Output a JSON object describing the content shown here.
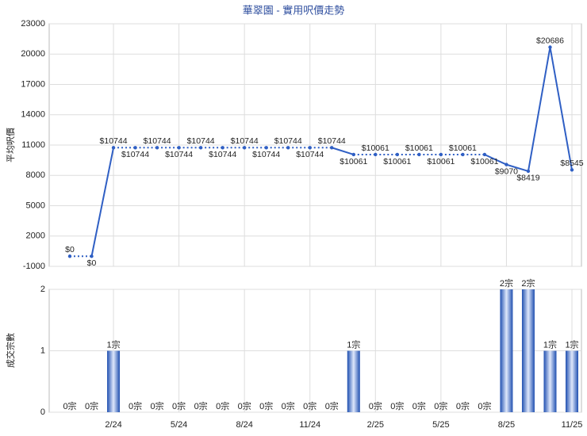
{
  "chart_data": [
    {
      "type": "line",
      "title": "華翠園 - 實用呎價走勢",
      "y_label": "平均呎價",
      "categories": [
        null,
        null,
        "2/24",
        null,
        null,
        "5/24",
        null,
        null,
        "8/24",
        null,
        null,
        "11/24",
        null,
        null,
        "2/25",
        null,
        null,
        "5/25",
        null,
        null,
        "8/25",
        null,
        null,
        "11/25"
      ],
      "series": [
        {
          "name": "平均呎價",
          "color": "#2f5fc4",
          "values": [
            0,
            0,
            10744,
            10744,
            10744,
            10744,
            10744,
            10744,
            10744,
            10744,
            10744,
            10744,
            10744,
            10061,
            10061,
            10061,
            10061,
            10061,
            10061,
            10061,
            9070,
            8419,
            20686,
            8545
          ],
          "value_labels": [
            "$0",
            "$0",
            "$10744",
            "$10744",
            "$10744",
            "$10744",
            "$10744",
            "$10744",
            "$10744",
            "$10744",
            "$10744",
            "$10744",
            "$10744",
            "$10061",
            "$10061",
            "$10061",
            "$10061",
            "$10061",
            "$10061",
            "$10061",
            "$9070",
            "$8419",
            "$20686",
            "$8545"
          ]
        }
      ],
      "ylim": [
        -1000,
        23000
      ],
      "yticks": [
        -1000,
        2000,
        5000,
        8000,
        11000,
        14000,
        17000,
        20000,
        23000
      ],
      "grid": true
    },
    {
      "type": "bar",
      "y_label": "成交宗數",
      "categories": [
        null,
        null,
        "2/24",
        null,
        null,
        "5/24",
        null,
        null,
        "8/24",
        null,
        null,
        "11/24",
        null,
        null,
        "2/25",
        null,
        null,
        "5/25",
        null,
        null,
        "8/25",
        null,
        null,
        "11/25"
      ],
      "series": [
        {
          "name": "成交宗數",
          "color": "#2f5fc4",
          "values": [
            0,
            0,
            1,
            0,
            0,
            0,
            0,
            0,
            0,
            0,
            0,
            0,
            0,
            1,
            0,
            0,
            0,
            0,
            0,
            0,
            2,
            2,
            1,
            1
          ],
          "value_labels": [
            "0宗",
            "0宗",
            "1宗",
            "0宗",
            "0宗",
            "0宗",
            "0宗",
            "0宗",
            "0宗",
            "0宗",
            "0宗",
            "0宗",
            "0宗",
            "1宗",
            "0宗",
            "0宗",
            "0宗",
            "0宗",
            "0宗",
            "0宗",
            "2宗",
            "2宗",
            "1宗",
            "1宗"
          ]
        }
      ],
      "ylim": [
        0,
        2
      ],
      "yticks": [
        0,
        1,
        2
      ],
      "grid": true
    }
  ]
}
